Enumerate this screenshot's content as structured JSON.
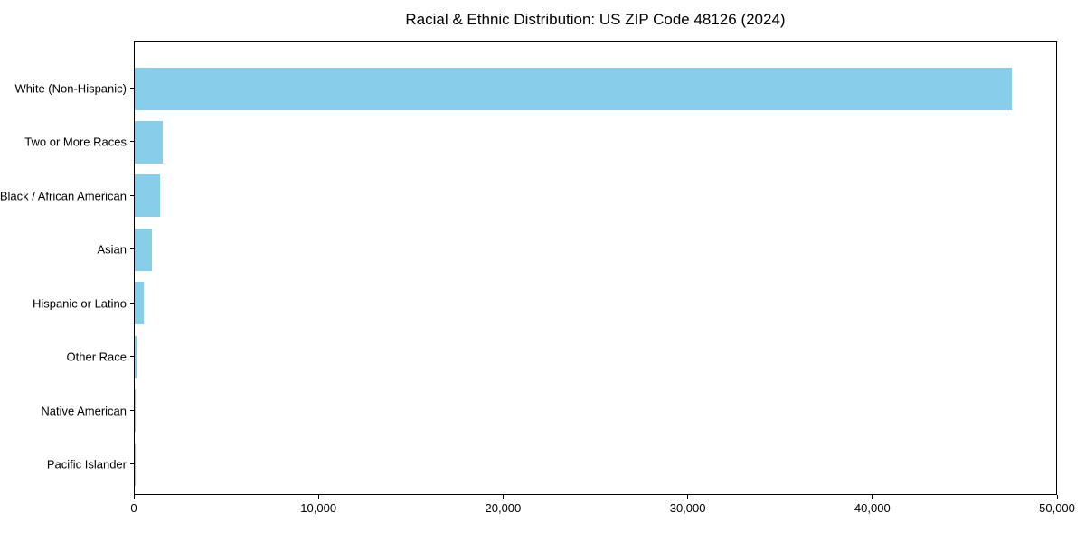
{
  "chart_data": {
    "type": "bar",
    "orientation": "horizontal",
    "title": "Racial & Ethnic Distribution: US ZIP Code 48126 (2024)",
    "categories": [
      "White (Non-Hispanic)",
      "Two or More Races",
      "Black / African American",
      "Asian",
      "Hispanic or Latino",
      "Other Race",
      "Native American",
      "Pacific Islander"
    ],
    "values": [
      47600,
      1520,
      1370,
      950,
      500,
      120,
      40,
      15
    ],
    "xlabel": "",
    "ylabel": "",
    "xlim": [
      0,
      50000
    ],
    "xticks": [
      0,
      10000,
      20000,
      30000,
      40000,
      50000
    ],
    "xtick_labels": [
      "0",
      "10,000",
      "20,000",
      "30,000",
      "40,000",
      "50,000"
    ],
    "bar_color": "#87CEEB",
    "text_color": "#000000",
    "grid": false,
    "legend": null
  }
}
